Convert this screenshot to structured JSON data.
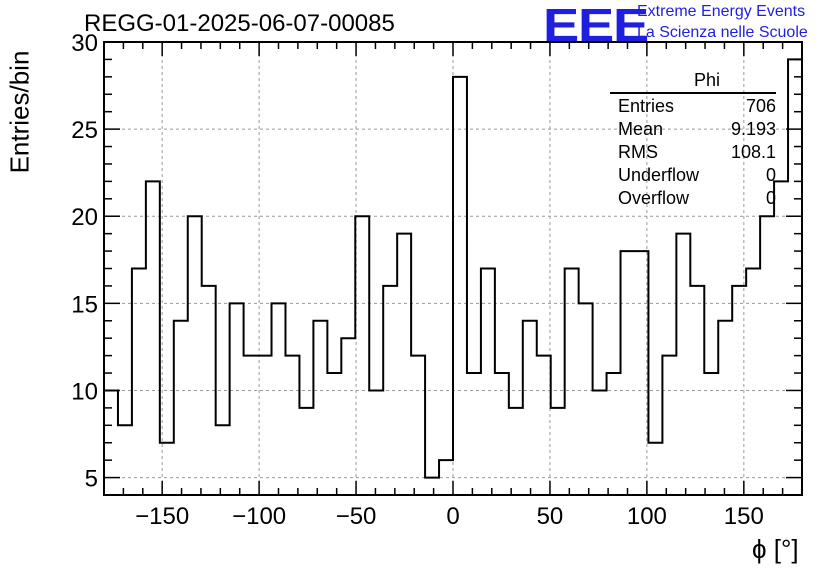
{
  "header": {
    "title": "REGG-01-2025-06-07-00085",
    "logo": "EEE",
    "logo_line1": "Extreme Energy Events",
    "logo_line2": "La Scienza nelle Scuole"
  },
  "stats": {
    "title": "Phi",
    "rows": [
      {
        "label": "Entries",
        "value": "706"
      },
      {
        "label": "Mean",
        "value": "9.193"
      },
      {
        "label": "RMS",
        "value": "108.1"
      },
      {
        "label": "Underflow",
        "value": "0"
      },
      {
        "label": "Overflow",
        "value": "0"
      }
    ]
  },
  "chart_data": {
    "type": "histogram",
    "title": "REGG-01-2025-06-07-00085",
    "xlabel": "ϕ [°]",
    "ylabel": "Entries/bin",
    "xlim": [
      -180,
      180
    ],
    "ylim": [
      4,
      30
    ],
    "xticks": [
      -150,
      -100,
      -50,
      0,
      50,
      100,
      150
    ],
    "yticks": [
      5,
      10,
      15,
      20,
      25,
      30
    ],
    "bin_width": 7.2,
    "bin_edges_start": -180,
    "values": [
      10,
      8,
      17,
      22,
      7,
      14,
      20,
      16,
      8,
      15,
      12,
      12,
      15,
      12,
      9,
      14,
      11,
      13,
      20,
      10,
      16,
      19,
      12,
      5,
      6,
      28,
      11,
      17,
      11,
      9,
      14,
      12,
      9,
      17,
      15,
      10,
      11,
      18,
      18,
      7,
      12,
      19,
      16,
      11,
      14,
      16,
      17,
      20,
      22,
      29
    ],
    "grid": true,
    "legend": "top-right"
  }
}
